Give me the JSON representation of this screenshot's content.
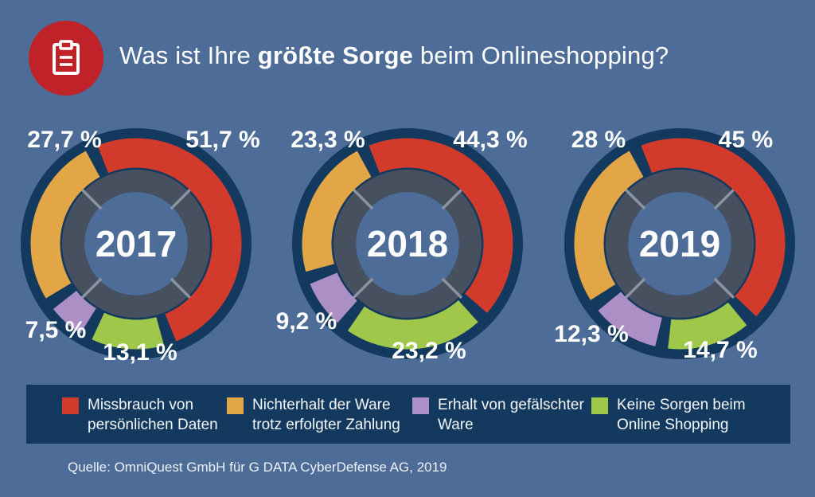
{
  "page": {
    "background_color": "#4d6c98"
  },
  "header": {
    "icon": "clipboard-icon",
    "badge_color": "#c0222a",
    "title_prefix": "Was ist Ihre ",
    "title_bold": "größte Sorge",
    "title_suffix": " beim Onlineshopping?"
  },
  "chart_data": {
    "type": "donut",
    "title": "Was ist Ihre größte Sorge beim Onlineshopping?",
    "unit": "%",
    "decimal_separator": ",",
    "legend_position": "bottom",
    "start_angle": -25,
    "pad_angle": 3.5,
    "colors": {
      "red": "#d23b2b",
      "orange": "#e2a647",
      "purple": "#ab8fc5",
      "green": "#9fc84b",
      "disc": "#14395e",
      "track": "#47505f",
      "divider": "#8b93a2"
    },
    "categories": [
      "Missbrauch von persönlichen Daten",
      "Nichterhalt der Ware trotz erfolgter Zahlung",
      "Erhalt von gefälschter Ware",
      "Keine Sorgen beim Online Shopping"
    ],
    "charts": [
      {
        "year": "2017",
        "segments": [
          {
            "category": "Missbrauch von persönlichen Daten",
            "color_key": "red",
            "value": 51.7,
            "label": "51,7 %"
          },
          {
            "category": "Keine Sorgen beim Online Shopping",
            "color_key": "green",
            "value": 13.1,
            "label": "13,1 %"
          },
          {
            "category": "Erhalt von gefälschter Ware",
            "color_key": "purple",
            "value": 7.5,
            "label": "7,5 %"
          },
          {
            "category": "Nichterhalt der Ware trotz erfolgter Zahlung",
            "color_key": "orange",
            "value": 27.7,
            "label": "27,7 %"
          }
        ]
      },
      {
        "year": "2018",
        "segments": [
          {
            "category": "Missbrauch von persönlichen Daten",
            "color_key": "red",
            "value": 44.3,
            "label": "44,3 %"
          },
          {
            "category": "Keine Sorgen beim Online Shopping",
            "color_key": "green",
            "value": 23.2,
            "label": "23,2 %"
          },
          {
            "category": "Erhalt von gefälschter Ware",
            "color_key": "purple",
            "value": 9.2,
            "label": "9,2 %"
          },
          {
            "category": "Nichterhalt der Ware trotz erfolgter Zahlung",
            "color_key": "orange",
            "value": 23.3,
            "label": "23,3 %"
          }
        ]
      },
      {
        "year": "2019",
        "segments": [
          {
            "category": "Missbrauch von persönlichen Daten",
            "color_key": "red",
            "value": 45,
            "label": "45 %"
          },
          {
            "category": "Keine Sorgen beim Online Shopping",
            "color_key": "green",
            "value": 14.7,
            "label": "14,7 %"
          },
          {
            "category": "Erhalt von gefälschter Ware",
            "color_key": "purple",
            "value": 12.3,
            "label": "12,3 %"
          },
          {
            "category": "Nichterhalt der Ware trotz erfolgter Zahlung",
            "color_key": "orange",
            "value": 28,
            "label": "28 %"
          }
        ]
      }
    ]
  },
  "legend": {
    "background_color": "#14395e",
    "items": [
      {
        "color_key": "red",
        "line1": "Missbrauch von",
        "line2": "persönlichen Daten"
      },
      {
        "color_key": "orange",
        "line1": "Nichterhalt der Ware",
        "line2": "trotz erfolgter Zahlung"
      },
      {
        "color_key": "purple",
        "line1": "Erhalt von gefälschter",
        "line2": "Ware"
      },
      {
        "color_key": "green",
        "line1": "Keine Sorgen beim",
        "line2": "Online Shopping"
      }
    ]
  },
  "source": {
    "text": "Quelle: OmniQuest GmbH für G DATA CyberDefense AG, 2019"
  }
}
